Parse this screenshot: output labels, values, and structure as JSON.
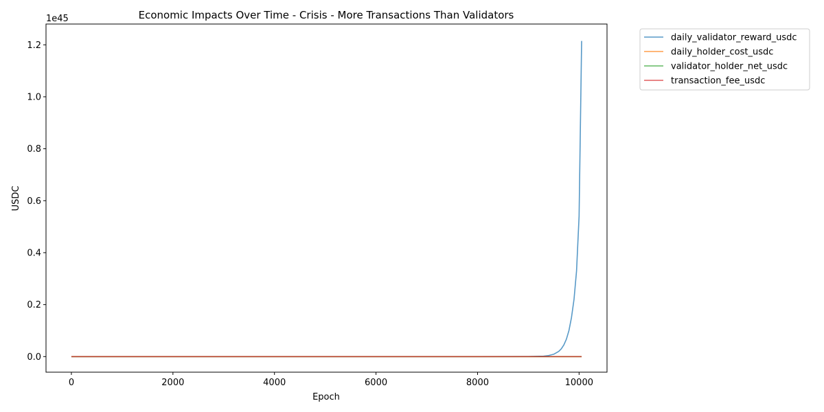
{
  "chart_data": {
    "type": "line",
    "title": "Economic Impacts Over Time - Crisis - More Transactions Than Validators",
    "xlabel": "Epoch",
    "ylabel": "USDC",
    "y_offset_label": "1e45",
    "xlim": [
      -500,
      10550
    ],
    "ylim": [
      -0.06,
      1.28
    ],
    "y_scale_note_multiplier": 1e+45,
    "grid": false,
    "legend_position": "outside-top-right",
    "x_ticks": [
      0,
      2000,
      4000,
      6000,
      8000,
      10000
    ],
    "x_tick_labels": [
      "0",
      "2000",
      "4000",
      "6000",
      "8000",
      "10000"
    ],
    "y_ticks": [
      0.0,
      0.2,
      0.4,
      0.6,
      0.8,
      1.0,
      1.2
    ],
    "y_tick_labels": [
      "0.0",
      "0.2",
      "0.4",
      "0.6",
      "0.8",
      "1.0",
      "1.2"
    ],
    "series": [
      {
        "name": "daily_validator_reward_usdc",
        "color": "#1f77b4",
        "x": [
          0,
          2000,
          4000,
          6000,
          8000,
          9000,
          9300,
          9400,
          9500,
          9600,
          9650,
          9700,
          9750,
          9800,
          9850,
          9900,
          9950,
          10000,
          10050
        ],
        "y": [
          0,
          0,
          0,
          0,
          0,
          0.0002,
          0.0018,
          0.0041,
          0.009,
          0.02,
          0.03,
          0.045,
          0.067,
          0.1,
          0.15,
          0.22,
          0.33,
          0.54,
          1.215
        ]
      },
      {
        "name": "daily_holder_cost_usdc",
        "color": "#ff7f0e",
        "x": [
          0,
          10050
        ],
        "y": [
          0,
          0
        ]
      },
      {
        "name": "validator_holder_net_usdc",
        "color": "#2ca02c",
        "x": [
          0,
          10050
        ],
        "y": [
          0,
          0
        ]
      },
      {
        "name": "transaction_fee_usdc",
        "color": "#d62728",
        "x": [
          0,
          10050
        ],
        "y": [
          0,
          0
        ]
      }
    ]
  }
}
